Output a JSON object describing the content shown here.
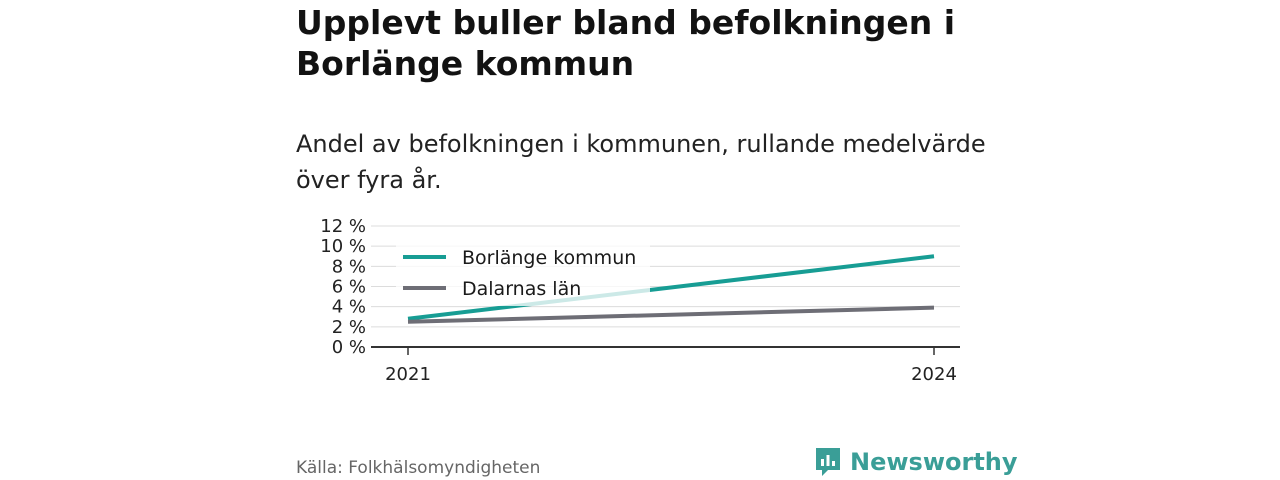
{
  "title": "Upplevt buller bland befolkningen i Borlänge kommun",
  "subtitle": "Andel av befolkningen i kommunen, rullande medelvärde över fyra år.",
  "source": "Källa: Folkhälsomyndigheten",
  "brand": "Newsworthy",
  "colors": {
    "accent": "#179d94",
    "secondary": "#6e6e76",
    "brand": "#3a9e97"
  },
  "chart_data": {
    "type": "line",
    "x": [
      "2021",
      "2024"
    ],
    "ylim": [
      0,
      12
    ],
    "yticks": [
      "0 %",
      "2 %",
      "4 %",
      "6 %",
      "8 %",
      "10 %",
      "12 %"
    ],
    "grid": true,
    "legend_position": "top-left",
    "series": [
      {
        "name": "Borlänge kommun",
        "values": [
          2.8,
          9.0
        ],
        "color": "#179d94"
      },
      {
        "name": "Dalarnas län",
        "values": [
          2.5,
          3.9
        ],
        "color": "#6e6e76"
      }
    ]
  }
}
